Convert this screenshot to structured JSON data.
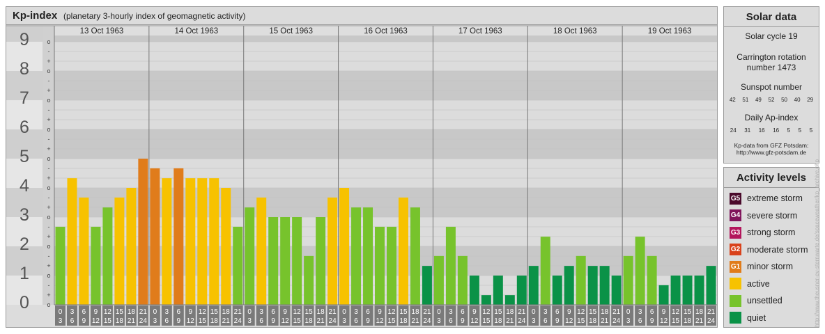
{
  "header": {
    "title": "Kp-index",
    "subtitle": "(planetary 3-hourly index of geomagnetic activity)"
  },
  "chart_data": {
    "type": "bar",
    "title": "Kp-index",
    "days": [
      "13 Oct 1963",
      "14 Oct 1963",
      "15 Oct 1963",
      "16 Oct 1963",
      "17 Oct 1963",
      "18 Oct 1963",
      "19 Oct 1963"
    ],
    "interval_labels": [
      [
        "0",
        "3"
      ],
      [
        "3",
        "6"
      ],
      [
        "6",
        "9"
      ],
      [
        "9",
        "12"
      ],
      [
        "12",
        "15"
      ],
      [
        "15",
        "18"
      ],
      [
        "18",
        "21"
      ],
      [
        "21",
        "24"
      ]
    ],
    "y_ticks": [
      "0",
      "1",
      "2",
      "3",
      "4",
      "5",
      "6",
      "7",
      "8",
      "9"
    ],
    "thirds_labels": [
      "+",
      "o",
      "-"
    ],
    "ylim": [
      0,
      9.33
    ],
    "values": [
      2.67,
      4.33,
      3.67,
      2.67,
      3.33,
      3.67,
      4.0,
      5.0,
      4.67,
      4.33,
      4.67,
      4.33,
      4.33,
      4.33,
      4.0,
      2.67,
      3.33,
      3.67,
      3.0,
      3.0,
      3.0,
      1.67,
      3.0,
      3.67,
      4.0,
      3.33,
      3.33,
      2.67,
      2.67,
      3.67,
      3.33,
      1.33,
      1.67,
      2.67,
      1.67,
      1.0,
      0.33,
      1.0,
      0.33,
      1.0,
      1.33,
      2.33,
      1.0,
      1.33,
      1.67,
      1.33,
      1.33,
      1.0,
      1.67,
      2.33,
      1.67,
      0.67,
      1.0,
      1.0,
      1.0,
      1.33
    ],
    "colors": {
      "quiet": "#0a9247",
      "unsettled": "#77c32c",
      "active": "#f7c200",
      "G1": "#e07c1b",
      "G2": "#d9421b",
      "G3": "#b3165c",
      "G4": "#80155b",
      "G5": "#4a0a2b"
    }
  },
  "solar": {
    "title": "Solar data",
    "cycle": "Solar cycle 19",
    "carrington_line1": "Carrington rotation",
    "carrington_line2": "number 1473",
    "sunspot_title": "Sunspot number",
    "sunspot_values": [
      "42",
      "51",
      "49",
      "52",
      "50",
      "40",
      "29"
    ],
    "ap_title": "Daily Ap-index",
    "ap_values": [
      "24",
      "31",
      "16",
      "16",
      "5",
      "5",
      "5"
    ],
    "source_line1": "Kp-data from GFZ Potsdam:",
    "source_line2": "http://www.gfz-potsdam.de"
  },
  "activity": {
    "title": "Activity levels",
    "levels": [
      {
        "badge": "G5",
        "label": "extreme storm",
        "color": "#4a0a2b"
      },
      {
        "badge": "G4",
        "label": "severe storm",
        "color": "#80155b"
      },
      {
        "badge": "G3",
        "label": "strong storm",
        "color": "#b3165c"
      },
      {
        "badge": "G2",
        "label": "moderate storm",
        "color": "#d9421b"
      },
      {
        "badge": "G1",
        "label": "minor storm",
        "color": "#e07c1b"
      },
      {
        "badge": "",
        "label": "active",
        "color": "#f7c200"
      },
      {
        "badge": "",
        "label": "unsettled",
        "color": "#77c32c"
      },
      {
        "badge": "",
        "label": "quiet",
        "color": "#0a9247"
      }
    ]
  },
  "watermark": "http://www.theusner-ev-sternwarte.de/spaceweather/kp_archive.php"
}
